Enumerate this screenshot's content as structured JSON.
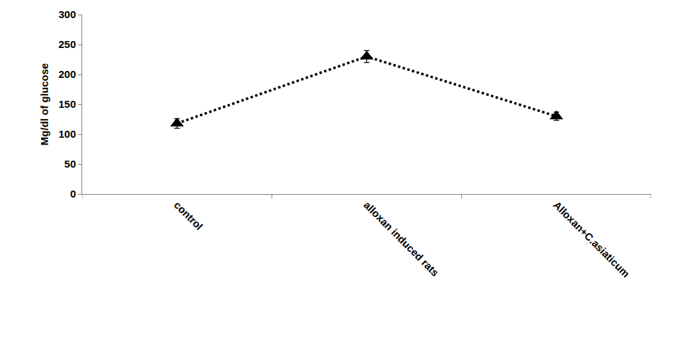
{
  "chart_data": {
    "type": "line",
    "y_label": "Mg/dl of glucose",
    "categories": [
      "control",
      "alloxan induced rats",
      "Alloxan+C.asiaticum"
    ],
    "series": [
      {
        "name": "glucose",
        "color": "#000000",
        "marker": "triangle-up",
        "line_style": "dot",
        "values": [
          118,
          230,
          130
        ],
        "errors": [
          8,
          10,
          7
        ]
      }
    ],
    "ylim": [
      0,
      300
    ],
    "yticks": [
      0,
      50,
      100,
      150,
      200,
      250,
      300
    ],
    "grid": false
  }
}
